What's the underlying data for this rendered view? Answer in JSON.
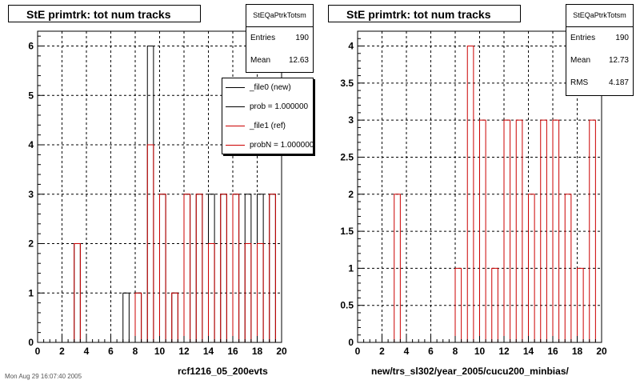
{
  "pads": [
    {
      "title": "StE primtrk: tot num tracks",
      "stats": {
        "name": "StEQaPtrkTotsm",
        "rows": [
          {
            "label": "Entries",
            "value": "190"
          },
          {
            "label": "Mean",
            "value": "12.63"
          }
        ]
      },
      "legend": [
        {
          "label": "_file0 (new)",
          "color": "#000000"
        },
        {
          "label": "prob = 1.000000",
          "color": "#000000"
        },
        {
          "label": "_file1 (ref)",
          "color": "#cc0000"
        },
        {
          "label": "probN = 1.000000",
          "color": "#cc0000"
        }
      ],
      "xlabel": "rcf1216_05_200evts"
    },
    {
      "title": "StE primtrk: tot num tracks",
      "stats": {
        "name": "StEQaPtrkTotsm",
        "rows": [
          {
            "label": "Entries",
            "value": "190"
          },
          {
            "label": "Mean",
            "value": "12.73"
          },
          {
            "label": "RMS",
            "value": "4.187"
          }
        ]
      },
      "legend": [],
      "xlabel": "new/trs_sl302/year_2005/cucu200_minbias/"
    }
  ],
  "footer": "Mon Aug 29 16:07:40 2005",
  "chart_data": [
    {
      "type": "histogram",
      "title": "StE primtrk: tot num tracks",
      "xlabel": "rcf1216_05_200evts",
      "ylabel": "",
      "xlim": [
        0,
        20
      ],
      "ylim": [
        0,
        6.3
      ],
      "bin_width": 0.5,
      "xticks": [
        0,
        2,
        4,
        6,
        8,
        10,
        12,
        14,
        16,
        18,
        20
      ],
      "yticks": [
        0,
        1,
        2,
        3,
        4,
        5,
        6
      ],
      "grid": true,
      "series": [
        {
          "name": "_file0 (new)",
          "color": "#000000",
          "bin_start": 0,
          "values": [
            0,
            0,
            0,
            0,
            0,
            0,
            2,
            0,
            0,
            0,
            0,
            0,
            0,
            0,
            1,
            0,
            1,
            0,
            6,
            0,
            3,
            0,
            1,
            0,
            3,
            0,
            3,
            0,
            3,
            0,
            3,
            0,
            3,
            0,
            3,
            0,
            3,
            0,
            3,
            0
          ]
        },
        {
          "name": "_file1 (ref)",
          "color": "#cc0000",
          "bin_start": 0,
          "values": [
            0,
            0,
            0,
            0,
            0,
            0,
            2,
            0,
            0,
            0,
            0,
            0,
            0,
            0,
            0,
            0,
            1,
            0,
            4,
            0,
            3,
            0,
            1,
            0,
            3,
            0,
            3,
            0,
            2,
            0,
            3,
            0,
            3,
            0,
            2,
            0,
            2,
            0,
            3,
            0
          ]
        }
      ]
    },
    {
      "type": "histogram",
      "title": "StE primtrk: tot num tracks",
      "xlabel": "new/trs_sl302/year_2005/cucu200_minbias/",
      "ylabel": "",
      "xlim": [
        0,
        20
      ],
      "ylim": [
        0,
        4.2
      ],
      "bin_width": 0.5,
      "xticks": [
        0,
        2,
        4,
        6,
        8,
        10,
        12,
        14,
        16,
        18,
        20
      ],
      "yticks": [
        0,
        0.5,
        1,
        1.5,
        2,
        2.5,
        3,
        3.5,
        4
      ],
      "grid": true,
      "series": [
        {
          "name": "",
          "color": "#cc0000",
          "bin_start": 0,
          "values": [
            0,
            0,
            0,
            0,
            0,
            0,
            2,
            0,
            0,
            0,
            0,
            0,
            0,
            0,
            0,
            0,
            1,
            0,
            4,
            0,
            3,
            0,
            1,
            0,
            3,
            0,
            3,
            0,
            2,
            0,
            3,
            0,
            3,
            0,
            2,
            0,
            1,
            0,
            3,
            0
          ]
        }
      ]
    }
  ]
}
